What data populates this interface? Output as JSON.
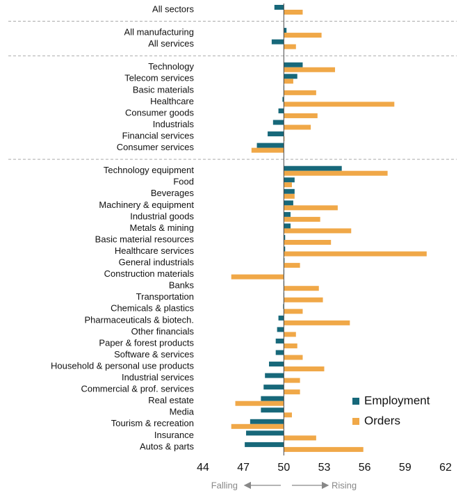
{
  "chart_data": {
    "type": "bar",
    "orientation": "horizontal",
    "categories": [
      "All sectors",
      "All manufacturing",
      "All services",
      "Technology",
      "Telecom services",
      "Basic materials",
      "Healthcare",
      "Consumer goods",
      "Industrials",
      "Financial services",
      "Consumer services",
      "Technology equipment",
      "Food",
      "Beverages",
      "Machinery & equipment",
      "Industrial goods",
      "Metals & mining",
      "Basic material resources",
      "Healthcare services",
      "General industrials",
      "Construction materials",
      "Banks",
      "Transportation",
      "Chemicals & plastics",
      "Pharmaceuticals & biotech.",
      "Other financials",
      "Paper & forest products",
      "Software & services",
      "Household & personal use products",
      "Industrial services",
      "Commercial & prof. services",
      "Real estate",
      "Media",
      "Tourism & recreation",
      "Insurance",
      "Autos & parts"
    ],
    "series": [
      {
        "name": "Employment",
        "color": "#17687a",
        "values": [
          49.3,
          50.2,
          49.1,
          51.4,
          51.0,
          50.0,
          49.9,
          49.6,
          49.2,
          48.8,
          48.0,
          54.3,
          50.8,
          50.8,
          50.7,
          50.5,
          50.5,
          50.1,
          50.1,
          50.05,
          50.0,
          50.0,
          50.0,
          49.95,
          49.6,
          49.5,
          49.4,
          49.4,
          48.9,
          48.6,
          48.5,
          48.3,
          48.3,
          47.5,
          47.2,
          47.1
        ]
      },
      {
        "name": "Orders",
        "color": "#f0a848",
        "values": [
          51.4,
          52.8,
          50.9,
          53.8,
          50.7,
          52.4,
          58.2,
          52.5,
          52.0,
          50.05,
          47.6,
          57.7,
          50.6,
          50.8,
          54.0,
          52.7,
          55.0,
          53.5,
          60.6,
          51.2,
          46.1,
          52.6,
          52.9,
          51.4,
          54.9,
          50.9,
          51.0,
          51.4,
          53.0,
          51.2,
          51.2,
          46.4,
          50.6,
          46.1,
          52.4,
          55.9
        ]
      }
    ],
    "baseline": 50,
    "xlim": [
      44,
      62
    ],
    "xticks": [
      44,
      47,
      50,
      53,
      56,
      59,
      62
    ],
    "annotations": [
      "Falling",
      "Rising"
    ],
    "legend": "lower right"
  }
}
